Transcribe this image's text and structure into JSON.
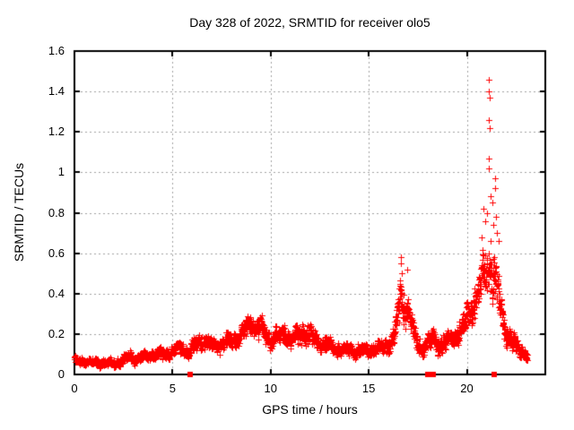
{
  "chart_data": {
    "type": "scatter",
    "title": "Day 328 of 2022, SRMTID for receiver olo5",
    "xlabel": "GPS time / hours",
    "ylabel": "SRMTID / TECUs",
    "xlim": [
      0,
      24
    ],
    "ylim": [
      0,
      1.6
    ],
    "xticks": [
      0,
      5,
      10,
      15,
      20
    ],
    "yticks": [
      0,
      0.2,
      0.4,
      0.6,
      0.8,
      1,
      1.2,
      1.4,
      1.6
    ],
    "grid": true,
    "legend_position": "none",
    "marker": {
      "shape": "plus",
      "color": "#ff0000",
      "size": 7
    },
    "series_name": "SRMTID",
    "x_data_range": [
      0,
      23.08
    ],
    "n_points_estimate": 2600,
    "band_envelope": [
      [
        0.0,
        0.07,
        0.035
      ],
      [
        0.5,
        0.065,
        0.03
      ],
      [
        1.0,
        0.06,
        0.03
      ],
      [
        1.5,
        0.06,
        0.03
      ],
      [
        2.0,
        0.055,
        0.03
      ],
      [
        2.5,
        0.07,
        0.035
      ],
      [
        2.8,
        0.09,
        0.04
      ],
      [
        3.1,
        0.075,
        0.035
      ],
      [
        3.5,
        0.09,
        0.04
      ],
      [
        4.0,
        0.105,
        0.045
      ],
      [
        4.5,
        0.1,
        0.045
      ],
      [
        5.0,
        0.12,
        0.05
      ],
      [
        5.4,
        0.135,
        0.055
      ],
      [
        5.8,
        0.115,
        0.05
      ],
      [
        6.2,
        0.15,
        0.06
      ],
      [
        6.6,
        0.17,
        0.065
      ],
      [
        7.0,
        0.145,
        0.055
      ],
      [
        7.4,
        0.15,
        0.055
      ],
      [
        7.8,
        0.16,
        0.06
      ],
      [
        8.2,
        0.175,
        0.065
      ],
      [
        8.6,
        0.21,
        0.075
      ],
      [
        9.0,
        0.27,
        0.09
      ],
      [
        9.3,
        0.23,
        0.08
      ],
      [
        9.6,
        0.21,
        0.08
      ],
      [
        10.0,
        0.175,
        0.065
      ],
      [
        10.4,
        0.19,
        0.075
      ],
      [
        10.7,
        0.21,
        0.08
      ],
      [
        11.0,
        0.165,
        0.06
      ],
      [
        11.5,
        0.21,
        0.075
      ],
      [
        12.0,
        0.19,
        0.07
      ],
      [
        12.4,
        0.16,
        0.06
      ],
      [
        12.8,
        0.15,
        0.055
      ],
      [
        13.2,
        0.13,
        0.05
      ],
      [
        13.6,
        0.12,
        0.045
      ],
      [
        14.0,
        0.12,
        0.045
      ],
      [
        14.5,
        0.115,
        0.045
      ],
      [
        15.0,
        0.12,
        0.045
      ],
      [
        15.5,
        0.13,
        0.05
      ],
      [
        16.0,
        0.15,
        0.06
      ],
      [
        16.3,
        0.19,
        0.08
      ],
      [
        16.55,
        0.33,
        0.16
      ],
      [
        16.7,
        0.4,
        0.12
      ],
      [
        16.85,
        0.3,
        0.12
      ],
      [
        17.0,
        0.36,
        0.11
      ],
      [
        17.15,
        0.25,
        0.1
      ],
      [
        17.4,
        0.15,
        0.07
      ],
      [
        17.7,
        0.13,
        0.06
      ],
      [
        18.0,
        0.16,
        0.065
      ],
      [
        18.3,
        0.18,
        0.07
      ],
      [
        18.6,
        0.14,
        0.06
      ],
      [
        19.0,
        0.16,
        0.065
      ],
      [
        19.4,
        0.19,
        0.075
      ],
      [
        19.8,
        0.23,
        0.09
      ],
      [
        20.1,
        0.3,
        0.11
      ],
      [
        20.4,
        0.36,
        0.13
      ],
      [
        20.7,
        0.44,
        0.16
      ],
      [
        21.0,
        0.53,
        0.19
      ],
      [
        21.2,
        0.55,
        0.2
      ],
      [
        21.4,
        0.48,
        0.19
      ],
      [
        21.6,
        0.38,
        0.15
      ],
      [
        21.8,
        0.28,
        0.11
      ],
      [
        22.0,
        0.22,
        0.09
      ],
      [
        22.3,
        0.16,
        0.07
      ],
      [
        22.6,
        0.13,
        0.055
      ],
      [
        22.9,
        0.11,
        0.045
      ],
      [
        23.08,
        0.09,
        0.04
      ]
    ],
    "outlier_points": [
      [
        21.13,
        1.46
      ],
      [
        21.14,
        1.4
      ],
      [
        21.16,
        1.37
      ],
      [
        21.13,
        1.26
      ],
      [
        21.16,
        1.22
      ],
      [
        21.14,
        1.07
      ],
      [
        21.13,
        1.02
      ],
      [
        21.45,
        0.97
      ],
      [
        21.46,
        0.92
      ],
      [
        21.2,
        0.88
      ],
      [
        21.3,
        0.85
      ],
      [
        20.85,
        0.82
      ],
      [
        21.05,
        0.8
      ],
      [
        21.5,
        0.78
      ],
      [
        20.95,
        0.76
      ],
      [
        21.35,
        0.74
      ],
      [
        21.55,
        0.7
      ],
      [
        20.75,
        0.68
      ],
      [
        21.6,
        0.66
      ],
      [
        16.62,
        0.58
      ],
      [
        16.65,
        0.55
      ],
      [
        16.98,
        0.52
      ],
      [
        16.68,
        0.5
      ]
    ],
    "axis_marker_points_x": [
      5.9,
      18.0,
      18.3,
      21.4
    ],
    "colors": {
      "points": "#ff0000",
      "grid": "#a0a0a0",
      "frame": "#000000",
      "background": "#ffffff",
      "text": "#000000"
    }
  }
}
